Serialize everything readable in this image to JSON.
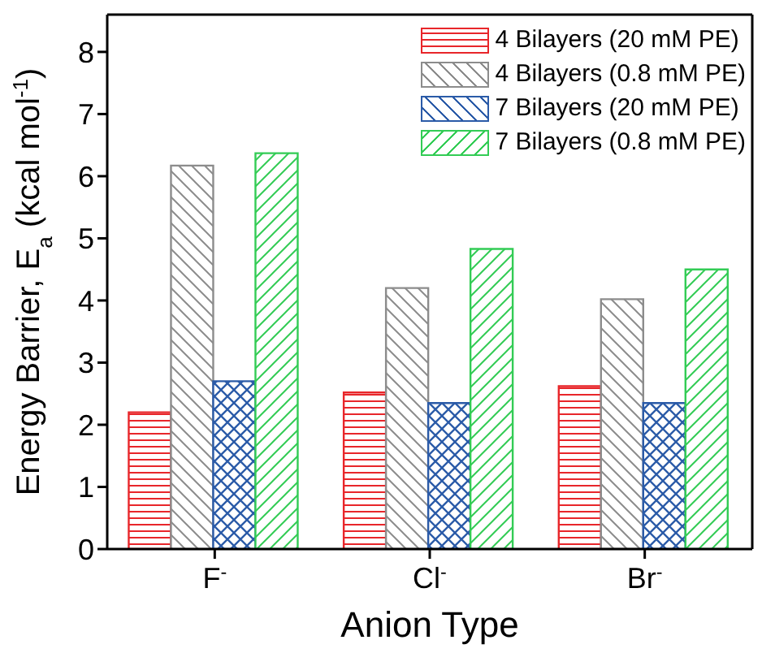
{
  "chart_data": {
    "type": "bar",
    "xlabel": "Anion Type",
    "ylabel": "Energy Barrier, E$_{a}$ (kcal mol$^{-1}$)",
    "categories": [
      "F$^{-}$",
      "Cl$^{-}$",
      "Br$^{-}$"
    ],
    "series": [
      {
        "name": "4 Bilayers (20 mM PE)",
        "color": "#e8262a",
        "values": [
          2.2,
          2.52,
          2.62
        ]
      },
      {
        "name": "4 Bilayers (0.8 mM PE)",
        "color": "#8c8c8c",
        "values": [
          6.17,
          4.2,
          4.02
        ]
      },
      {
        "name": "7 Bilayers (20 mM PE)",
        "color": "#2b5ba8",
        "values": [
          2.7,
          2.35,
          2.35
        ]
      },
      {
        "name": "7 Bilayers (0.8 mM PE)",
        "color": "#33cc55",
        "values": [
          6.37,
          4.83,
          4.5
        ]
      }
    ],
    "ylim": [
      0,
      8.6
    ],
    "yticks": [
      0,
      1,
      2,
      3,
      4,
      5,
      6,
      7,
      8
    ],
    "legend": "top right",
    "grid": false
  }
}
